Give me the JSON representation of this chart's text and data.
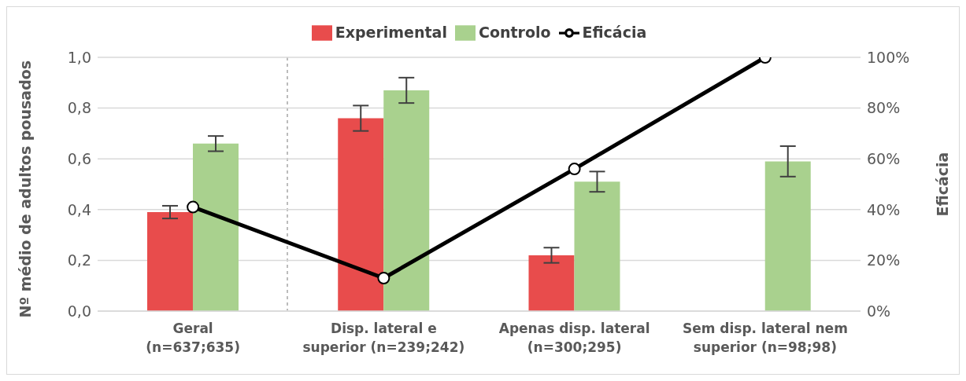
{
  "chart_data": {
    "type": "bar",
    "ylabel": "Nº médio de adultos pousados",
    "y2label": "Eficácia",
    "categories": [
      "Geral\n(n=637;635)",
      "Disp. lateral e\nsuperior (n=239;242)",
      "Apenas disp. lateral\n(n=300;295)",
      "Sem disp. lateral nem\nsuperior (n=98;98)"
    ],
    "series": [
      {
        "name": "Experimental",
        "color": "#e84c4c",
        "values": [
          0.39,
          0.76,
          0.22,
          0
        ],
        "errors": [
          0.025,
          0.05,
          0.03,
          null
        ]
      },
      {
        "name": "Controlo",
        "color": "#a9d18e",
        "values": [
          0.66,
          0.87,
          0.51,
          0.59
        ],
        "errors": [
          0.03,
          0.05,
          0.04,
          0.06
        ]
      },
      {
        "name": "Eficácia",
        "type": "line",
        "axis": "y2",
        "color": "#000000",
        "values": [
          41,
          13,
          56,
          100
        ]
      }
    ],
    "ylim": [
      0,
      1.0
    ],
    "yticks": [
      {
        "value": 0,
        "label": "0,0"
      },
      {
        "value": 0.2,
        "label": "0,2"
      },
      {
        "value": 0.4,
        "label": "0,4"
      },
      {
        "value": 0.6,
        "label": "0,6"
      },
      {
        "value": 0.8,
        "label": "0,8"
      },
      {
        "value": 1.0,
        "label": "1,0"
      }
    ],
    "y2lim": [
      0,
      100
    ],
    "y2ticks": [
      {
        "value": 0,
        "label": "0%"
      },
      {
        "value": 20,
        "label": "20%"
      },
      {
        "value": 40,
        "label": "40%"
      },
      {
        "value": 60,
        "label": "60%"
      },
      {
        "value": 80,
        "label": "80%"
      },
      {
        "value": 100,
        "label": "100%"
      }
    ],
    "grid": "y",
    "legend": "top",
    "marker": "circle",
    "line_style": "solid"
  }
}
